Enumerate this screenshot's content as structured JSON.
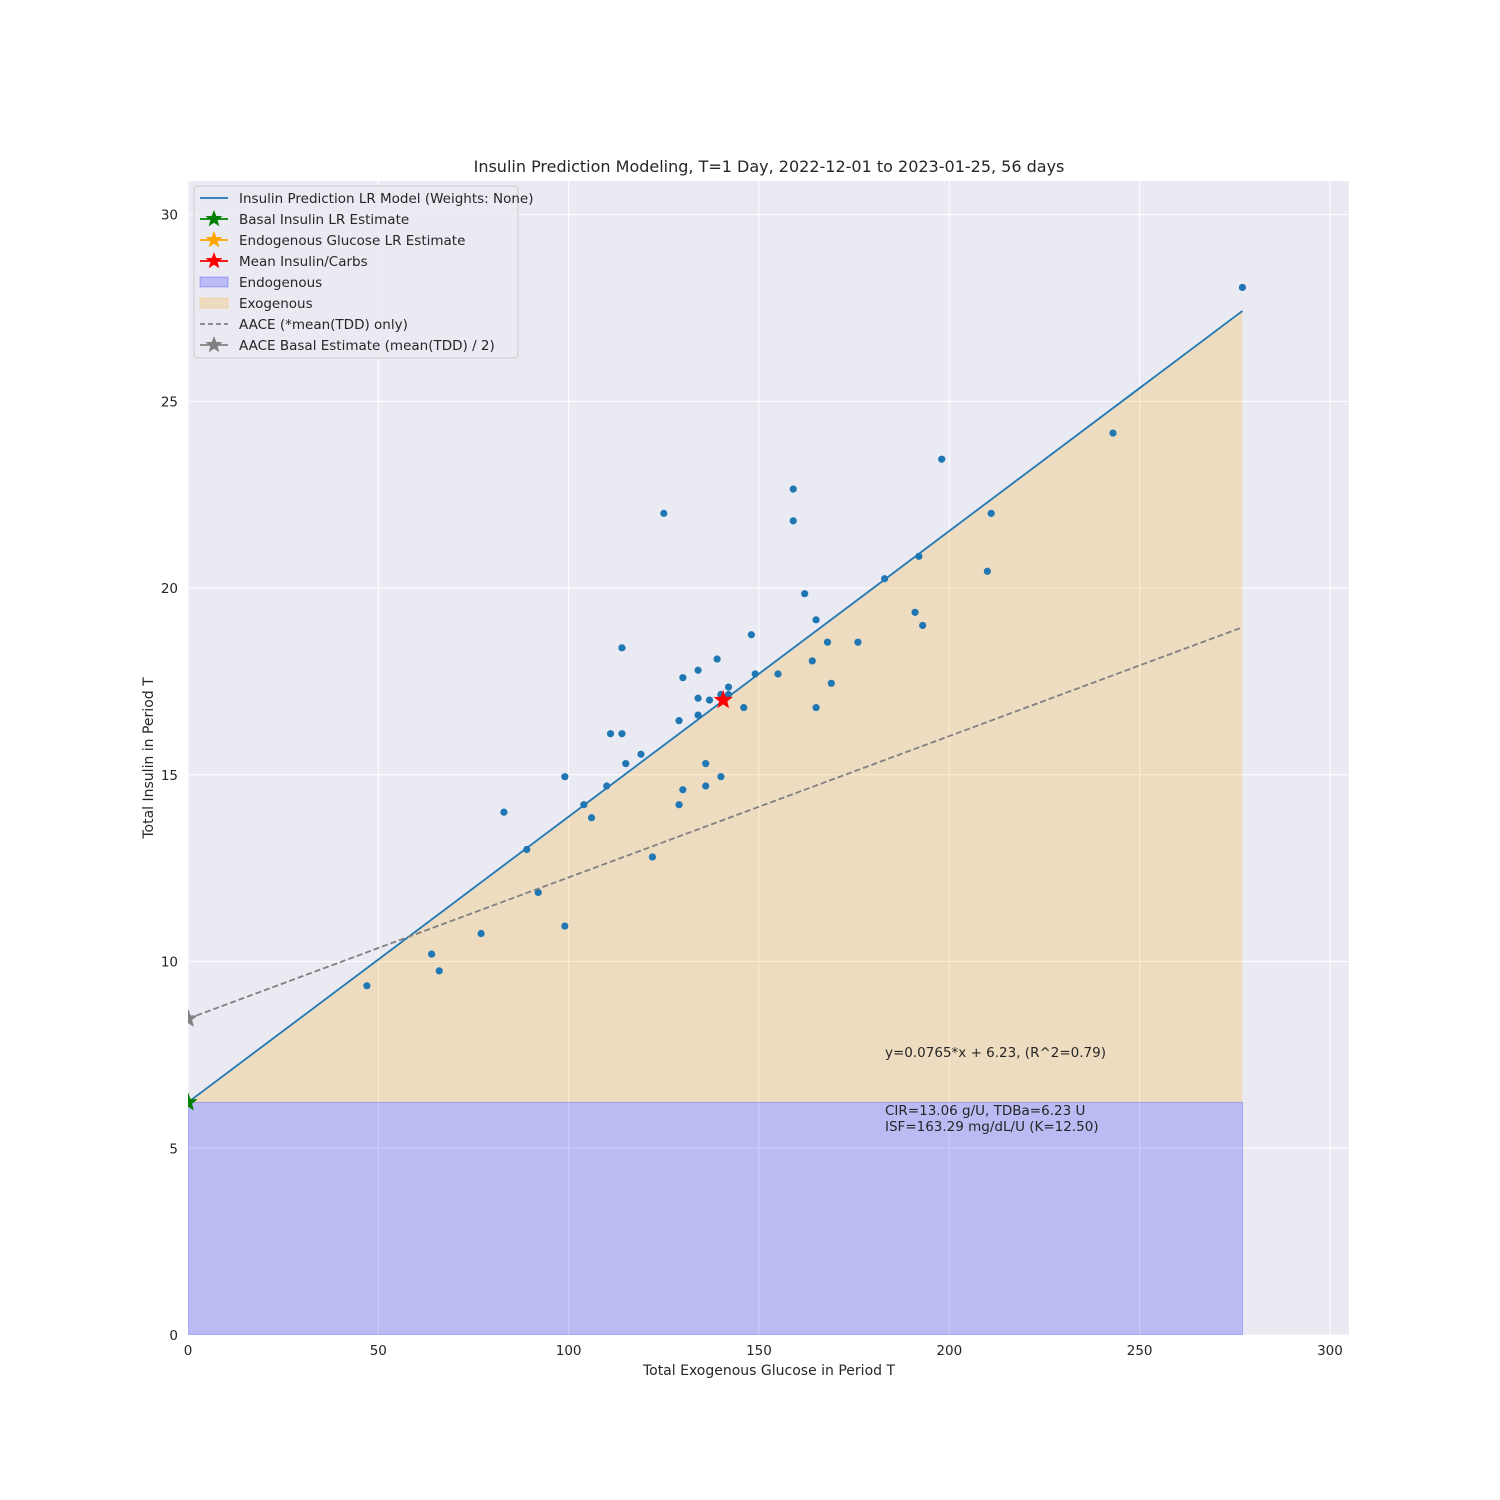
{
  "chart_data": {
    "type": "scatter",
    "title": "Insulin Prediction Modeling, T=1 Day, 2022-12-01 to 2023-01-25, 56 days",
    "xlabel": "Total Exogenous Glucose in Period T",
    "ylabel": "Total Insulin in Period T",
    "xlim": [
      0,
      305
    ],
    "ylim": [
      0,
      30.9
    ],
    "xticks": [
      0,
      50,
      100,
      150,
      200,
      250,
      300
    ],
    "yticks": [
      0,
      5,
      10,
      15,
      20,
      25,
      30
    ],
    "grid": true,
    "legend_position": "top-left",
    "colors": {
      "background": "#eaeaf2",
      "grid": "#ffffff",
      "points": "#1f77b4",
      "lr_line": "#1f77b4",
      "endogenous_fill": "#0000ff",
      "exogenous_fill": "#ffa500",
      "aace_line": "#808080",
      "basal_star": "#008000",
      "endogenous_star": "#ffa500",
      "mean_star": "#ff0000",
      "aace_star": "#808080"
    },
    "legend": [
      {
        "label": "Insulin Prediction LR Model (Weights: None)",
        "kind": "line",
        "color": "#1f77b4"
      },
      {
        "label": "Basal Insulin LR Estimate",
        "kind": "star-line",
        "color": "#008000"
      },
      {
        "label": "Endogenous Glucose LR Estimate",
        "kind": "star-line",
        "color": "#ffa500"
      },
      {
        "label": "Mean Insulin/Carbs",
        "kind": "star-line",
        "color": "#ff0000"
      },
      {
        "label": "Endogenous",
        "kind": "patch",
        "color": "#0000ff"
      },
      {
        "label": "Exogenous",
        "kind": "patch",
        "color": "#ffa500"
      },
      {
        "label": "AACE (*mean(TDD) only)",
        "kind": "dashed",
        "color": "#808080"
      },
      {
        "label": "AACE Basal Estimate (mean(TDD) / 2)",
        "kind": "star-line",
        "color": "#808080"
      }
    ],
    "points": [
      [
        47,
        9.35
      ],
      [
        64,
        10.2
      ],
      [
        66,
        9.75
      ],
      [
        77,
        10.75
      ],
      [
        83,
        14.0
      ],
      [
        89,
        13.0
      ],
      [
        92,
        11.85
      ],
      [
        99,
        14.95
      ],
      [
        99,
        10.95
      ],
      [
        104,
        14.2
      ],
      [
        106,
        13.85
      ],
      [
        110,
        14.7
      ],
      [
        111,
        16.1
      ],
      [
        114,
        18.4
      ],
      [
        114,
        16.1
      ],
      [
        115,
        15.3
      ],
      [
        119,
        15.55
      ],
      [
        122,
        12.8
      ],
      [
        125,
        22.0
      ],
      [
        129,
        16.45
      ],
      [
        129,
        14.2
      ],
      [
        130,
        17.6
      ],
      [
        130,
        14.6
      ],
      [
        134,
        17.8
      ],
      [
        134,
        17.05
      ],
      [
        134,
        16.6
      ],
      [
        136,
        15.3
      ],
      [
        136,
        14.7
      ],
      [
        137,
        17.0
      ],
      [
        139,
        18.1
      ],
      [
        140,
        17.15
      ],
      [
        140,
        14.95
      ],
      [
        142,
        17.35
      ],
      [
        142,
        17.15
      ],
      [
        146,
        16.8
      ],
      [
        148,
        18.75
      ],
      [
        149,
        17.7
      ],
      [
        155,
        17.7
      ],
      [
        159,
        22.65
      ],
      [
        159,
        21.8
      ],
      [
        162,
        19.85
      ],
      [
        164,
        18.05
      ],
      [
        165,
        19.15
      ],
      [
        165,
        16.8
      ],
      [
        168,
        18.55
      ],
      [
        169,
        17.45
      ],
      [
        176,
        18.55
      ],
      [
        183,
        20.25
      ],
      [
        191,
        19.35
      ],
      [
        192,
        20.85
      ],
      [
        193,
        19.0
      ],
      [
        198,
        23.45
      ],
      [
        210,
        20.45
      ],
      [
        211,
        22.0
      ],
      [
        243,
        24.15
      ],
      [
        277,
        28.05
      ]
    ],
    "lr_model": {
      "slope": 0.0765,
      "intercept": 6.23,
      "x_range": [
        0,
        277
      ]
    },
    "aace_line": {
      "intercept": 8.47,
      "end_y": 18.95,
      "x_range": [
        0,
        277
      ]
    },
    "endogenous_band": {
      "y": 6.23,
      "x_range": [
        0,
        277
      ]
    },
    "markers": {
      "basal_lr": [
        0,
        6.23
      ],
      "mean_insulin_carbs": [
        140.6,
        17.0
      ],
      "aace_basal": [
        0,
        8.47
      ]
    },
    "annotations": {
      "equation": "y=0.0765*x + 6.23, (R^2=0.79)",
      "cir_line": "CIR=13.06 g/U, TDBa=6.23 U",
      "isf_line": "ISF=163.29 mg/dL/U (K=12.50)"
    }
  }
}
